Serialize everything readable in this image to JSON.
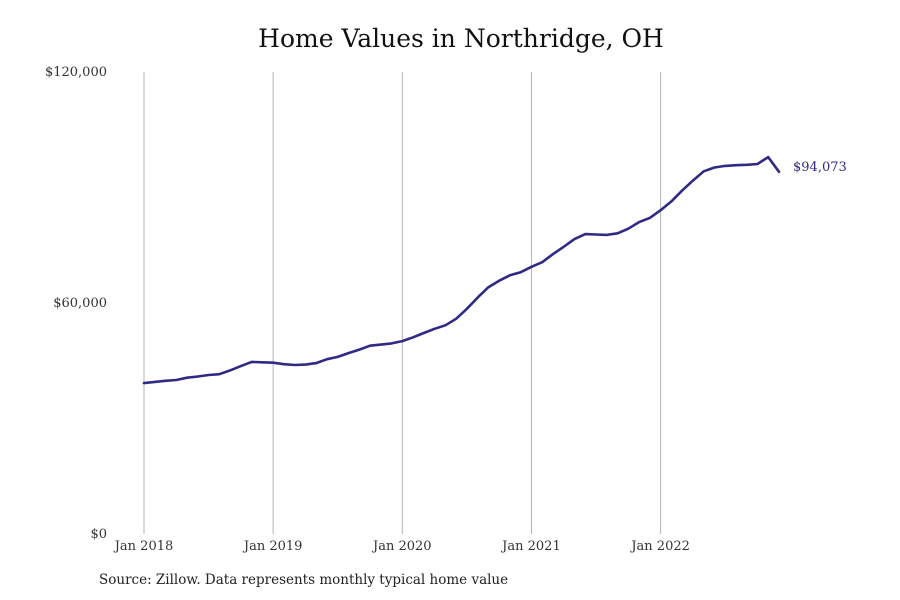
{
  "title": "Home Values in Northridge, OH",
  "source_note": "Source: Zillow. Data represents monthly typical home value",
  "colors": {
    "line": "#2e2a85",
    "grid": "#b4b4b4",
    "text": "#333333"
  },
  "chart_data": {
    "type": "line",
    "title": "Home Values in Northridge, OH",
    "xlabel": "",
    "ylabel": "",
    "ylim": [
      0,
      120000
    ],
    "yticks": [
      {
        "value": 0,
        "label": "$0"
      },
      {
        "value": 60000,
        "label": "$60,000"
      },
      {
        "value": 120000,
        "label": "$120,000"
      }
    ],
    "xticks": [
      {
        "date": "2018-01",
        "label": "Jan 2018"
      },
      {
        "date": "2019-01",
        "label": "Jan 2019"
      },
      {
        "date": "2020-01",
        "label": "Jan 2020"
      },
      {
        "date": "2021-01",
        "label": "Jan 2021"
      },
      {
        "date": "2022-01",
        "label": "Jan 2022"
      }
    ],
    "x_range": [
      "2018-01",
      "2022-12"
    ],
    "grid": "vertical at x ticks",
    "end_label": "$94,073",
    "series": [
      {
        "x": [
          "2018-01",
          "2018-02",
          "2018-03",
          "2018-04",
          "2018-05",
          "2018-06",
          "2018-07",
          "2018-08",
          "2018-09",
          "2018-10",
          "2018-11",
          "2018-12",
          "2019-01",
          "2019-02",
          "2019-03",
          "2019-04",
          "2019-05",
          "2019-06",
          "2019-07",
          "2019-08",
          "2019-09",
          "2019-10",
          "2019-11",
          "2019-12",
          "2020-01",
          "2020-02",
          "2020-03",
          "2020-04",
          "2020-05",
          "2020-06",
          "2020-07",
          "2020-08",
          "2020-09",
          "2020-10",
          "2020-11",
          "2020-12",
          "2021-01",
          "2021-02",
          "2021-03",
          "2021-04",
          "2021-05",
          "2021-06",
          "2021-07",
          "2021-08",
          "2021-09",
          "2021-10",
          "2021-11",
          "2021-12",
          "2022-01",
          "2022-02",
          "2022-03",
          "2022-04",
          "2022-05",
          "2022-06",
          "2022-07",
          "2022-08",
          "2022-09",
          "2022-10",
          "2022-11",
          "2022-12"
        ],
        "values": [
          39200,
          39500,
          39800,
          40000,
          40600,
          40900,
          41300,
          41500,
          42500,
          43600,
          44700,
          44600,
          44500,
          44100,
          43900,
          44000,
          44400,
          45400,
          46000,
          47000,
          47900,
          48900,
          49200,
          49500,
          50100,
          51100,
          52200,
          53300,
          54200,
          55900,
          58500,
          61400,
          64100,
          65800,
          67200,
          68000,
          69400,
          70600,
          72700,
          74600,
          76600,
          77900,
          77800,
          77700,
          78100,
          79300,
          81000,
          82100,
          84100,
          86400,
          89200,
          91800,
          94200,
          95200,
          95600,
          95800,
          95900,
          96100,
          97900,
          94073
        ]
      }
    ]
  }
}
